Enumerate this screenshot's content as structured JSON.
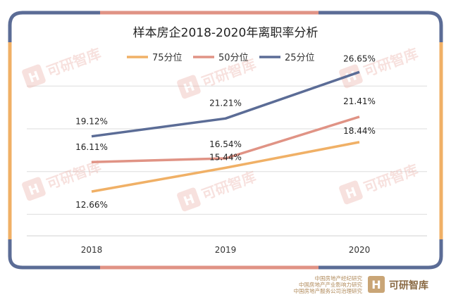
{
  "colors": {
    "frame_blue": "#5b6c96",
    "frame_salmon": "#e09385",
    "frame_orange": "#f0b066",
    "grid": "#dddddd",
    "watermark": "#e8a39a"
  },
  "watermark": {
    "logo_glyph": "H",
    "text": "可研智库"
  },
  "footer": {
    "org_lines": [
      "中国房地产经纪研究",
      "中国房地产产业影响力研究",
      "中国房地产服务公司治理研究"
    ],
    "brand_text": "可研智库"
  },
  "chart_data": {
    "type": "line",
    "title": "样本房企2018-2020年离职率分析",
    "categories": [
      "2018",
      "2019",
      "2020"
    ],
    "ylim": [
      0,
      30
    ],
    "grid": true,
    "legend_position": "top",
    "series": [
      {
        "name": "75分位",
        "values": [
          12.66,
          15.44,
          18.44
        ],
        "labels": [
          "12.66%",
          "15.44%",
          "18.44%"
        ],
        "color": "#f0b066"
      },
      {
        "name": "50分位",
        "values": [
          16.11,
          16.54,
          21.41
        ],
        "labels": [
          "16.11%",
          "16.54%",
          "21.41%"
        ],
        "color": "#e09385"
      },
      {
        "name": "25分位",
        "values": [
          19.12,
          21.21,
          26.65
        ],
        "labels": [
          "19.12%",
          "21.21%",
          "26.65%"
        ],
        "color": "#5b6c96"
      }
    ]
  }
}
